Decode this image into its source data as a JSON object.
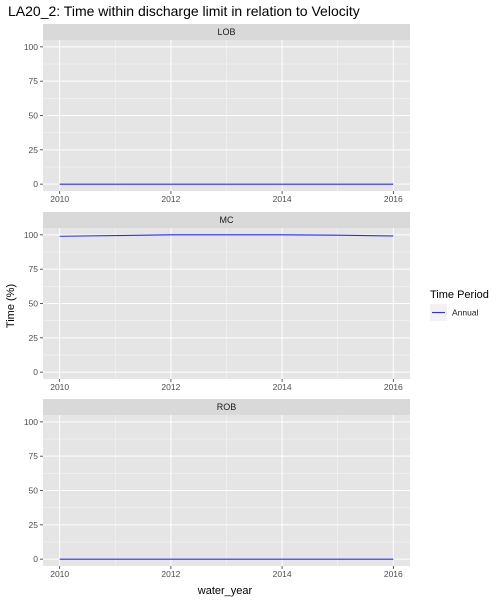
{
  "chart_data": {
    "type": "line",
    "title": "LA20_2: Time within discharge limit in relation to Velocity",
    "xlabel": "water_year",
    "ylabel": "Time (%)",
    "xlim": [
      2009.7,
      2016.3
    ],
    "ylim": [
      -5,
      105
    ],
    "x_ticks": [
      2010,
      2012,
      2014,
      2016
    ],
    "y_ticks": [
      0,
      25,
      50,
      75,
      100
    ],
    "grid": true,
    "legend": {
      "title": "Time Period",
      "position": "right",
      "entries": [
        "Annual"
      ]
    },
    "colors": {
      "line": "#2b2bff",
      "panel": "#e5e5e5",
      "strip": "#d9d9d9",
      "grid": "#ffffff"
    },
    "panels": [
      {
        "label": "LOB",
        "series": [
          {
            "name": "Annual",
            "x": [
              2010,
              2011,
              2012,
              2013,
              2014,
              2015,
              2016
            ],
            "values": [
              0,
              0,
              0,
              0,
              0,
              0,
              0
            ]
          }
        ]
      },
      {
        "label": "MC",
        "series": [
          {
            "name": "Annual",
            "x": [
              2010,
              2011,
              2012,
              2013,
              2014,
              2015,
              2016
            ],
            "values": [
              99,
              99.5,
              100,
              100,
              100,
              99.8,
              99.2
            ]
          }
        ]
      },
      {
        "label": "ROB",
        "series": [
          {
            "name": "Annual",
            "x": [
              2010,
              2011,
              2012,
              2013,
              2014,
              2015,
              2016
            ],
            "values": [
              0,
              0,
              0,
              0,
              0,
              0,
              0
            ]
          }
        ]
      }
    ]
  }
}
